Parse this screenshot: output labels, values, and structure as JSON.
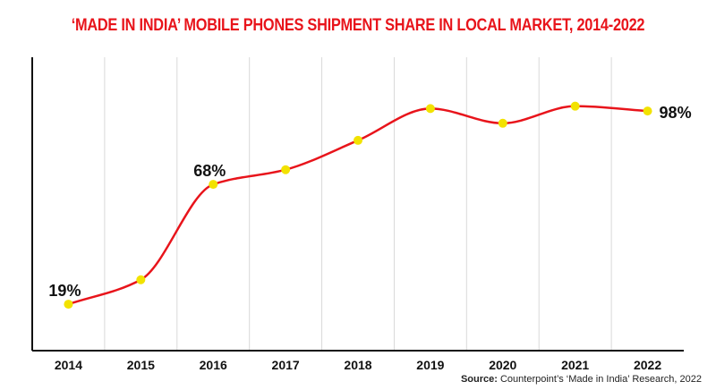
{
  "title": "‘MADE IN INDIA’ MOBILE PHONES SHIPMENT SHARE IN LOCAL MARKET, 2014-2022",
  "source": {
    "label": "Source:",
    "text": "Counterpoint’s ‘Made in India’ Research, 2022"
  },
  "colors": {
    "title": "#e8141b",
    "line": "#e8141b",
    "marker": "#f2e200",
    "grid": "#d9d9d9",
    "axis": "#111111"
  },
  "chart_data": {
    "type": "line",
    "title": "‘MADE IN INDIA’ MOBILE PHONES SHIPMENT SHARE IN LOCAL MARKET, 2014-2022",
    "xlabel": "",
    "ylabel": "",
    "categories": [
      "2014",
      "2015",
      "2016",
      "2017",
      "2018",
      "2019",
      "2020",
      "2021",
      "2022"
    ],
    "series": [
      {
        "values": [
          19,
          29,
          68,
          74,
          86,
          99,
          93,
          100,
          98
        ],
        "labels": [
          "19%",
          "",
          "68%",
          "",
          "",
          "",
          "",
          "",
          "98%"
        ]
      }
    ],
    "ylim": [
      0,
      120
    ],
    "grid": "vertical",
    "legend": "none",
    "markers": true,
    "smooth": true
  }
}
